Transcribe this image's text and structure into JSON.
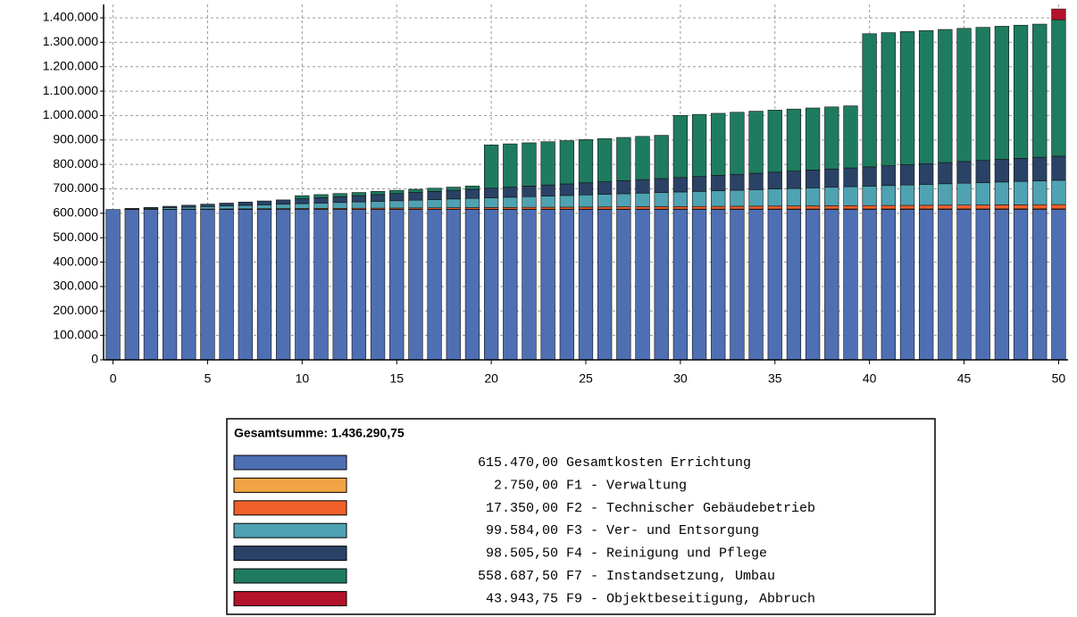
{
  "chart_data": {
    "type": "stacked_bar",
    "x": [
      0,
      1,
      2,
      3,
      4,
      5,
      6,
      7,
      8,
      9,
      10,
      11,
      12,
      13,
      14,
      15,
      16,
      17,
      18,
      19,
      20,
      21,
      22,
      23,
      24,
      25,
      26,
      27,
      28,
      29,
      30,
      31,
      32,
      33,
      34,
      35,
      36,
      37,
      38,
      39,
      40,
      41,
      42,
      43,
      44,
      45,
      46,
      47,
      48,
      49,
      50
    ],
    "xlim": [
      -0.5,
      50.5
    ],
    "xticks": [
      0,
      5,
      10,
      15,
      20,
      25,
      30,
      35,
      40,
      45,
      50
    ],
    "ylim": [
      0,
      1400000
    ],
    "yticks": [
      0,
      {
        "value": 100000,
        "label": "100.000"
      },
      {
        "value": 200000,
        "label": "200.000"
      },
      {
        "value": 300000,
        "label": "300.000"
      },
      {
        "value": 400000,
        "label": "400.000"
      },
      {
        "value": 500000,
        "label": "500.000"
      },
      {
        "value": 600000,
        "label": "600.000"
      },
      {
        "value": 700000,
        "label": "700.000"
      },
      {
        "value": 800000,
        "label": "800.000"
      },
      {
        "value": 900000,
        "label": "900.000"
      },
      {
        "value": 1000000,
        "label": "1.000.000"
      },
      {
        "value": 1100000,
        "label": "1.100.000"
      },
      {
        "value": 1200000,
        "label": "1.200.000"
      },
      {
        "value": 1300000,
        "label": "1.300.000"
      },
      {
        "value": 1400000,
        "label": "1.400.000"
      }
    ],
    "grid": true,
    "legend_title": "Gesamtsumme: 1.436.290,75",
    "series": [
      {
        "name": "Gesamtkosten Errichtung",
        "total_label": "615.470,00",
        "color": "#4f6fb3",
        "values": [
          615470,
          615470,
          615470,
          615470,
          615470,
          615470,
          615470,
          615470,
          615470,
          615470,
          615470,
          615470,
          615470,
          615470,
          615470,
          615470,
          615470,
          615470,
          615470,
          615470,
          615470,
          615470,
          615470,
          615470,
          615470,
          615470,
          615470,
          615470,
          615470,
          615470,
          615470,
          615470,
          615470,
          615470,
          615470,
          615470,
          615470,
          615470,
          615470,
          615470,
          615470,
          615470,
          615470,
          615470,
          615470,
          615470,
          615470,
          615470,
          615470,
          615470,
          615470
        ]
      },
      {
        "name": "F1 - Verwaltung",
        "total_label": "2.750,00",
        "color": "#f2a444",
        "values": [
          0,
          55,
          110,
          165,
          220,
          275,
          330,
          385,
          440,
          495,
          550,
          605,
          660,
          715,
          770,
          825,
          880,
          935,
          990,
          1045,
          1100,
          1155,
          1210,
          1265,
          1320,
          1375,
          1430,
          1485,
          1540,
          1595,
          1650,
          1705,
          1760,
          1815,
          1870,
          1925,
          1980,
          2035,
          2090,
          2145,
          2200,
          2255,
          2310,
          2365,
          2420,
          2475,
          2530,
          2585,
          2640,
          2695,
          2750
        ]
      },
      {
        "name": "F2 - Technischer Gebäudebetrieb",
        "total_label": "17.350,00",
        "color": "#f0602a",
        "values": [
          0,
          347,
          694,
          1041,
          1388,
          1735,
          2082,
          2429,
          2776,
          3123,
          3470,
          3817,
          4164,
          4511,
          4858,
          5205,
          5552,
          5899,
          6246,
          6593,
          6940,
          7287,
          7634,
          7981,
          8328,
          8675,
          9022,
          9369,
          9716,
          10063,
          10410,
          10757,
          11104,
          11451,
          11798,
          12145,
          12492,
          12839,
          13186,
          13533,
          13880,
          14227,
          14574,
          14921,
          15268,
          15615,
          15962,
          16309,
          16656,
          17003,
          17350
        ]
      },
      {
        "name": "F3 - Ver- und Entsorgung",
        "total_label": "99.584,00",
        "color": "#4fa2b2",
        "values": [
          0,
          1992,
          3984,
          5976,
          7968,
          9960,
          11952,
          13944,
          15936,
          17928,
          19920,
          21912,
          23904,
          25896,
          27888,
          29880,
          31872,
          33864,
          35856,
          37848,
          39840,
          41832,
          43824,
          45816,
          47808,
          49800,
          51792,
          53784,
          55776,
          57768,
          59760,
          61752,
          63744,
          65736,
          67728,
          69720,
          71712,
          73704,
          75696,
          77688,
          79680,
          81672,
          83664,
          85656,
          87648,
          89640,
          91632,
          93624,
          95616,
          97608,
          99584
        ]
      },
      {
        "name": "F4 - Reinigung und Pflege",
        "total_label": "98.505,50",
        "color": "#2a4266",
        "values": [
          0,
          1970,
          3940,
          5910,
          7880,
          9850,
          11820,
          13790,
          15760,
          17730,
          19700,
          21670,
          23640,
          25610,
          27580,
          29550,
          31520,
          33490,
          35460,
          37430,
          39400,
          41370,
          43340,
          45310,
          47280,
          49250,
          51220,
          53190,
          55160,
          57130,
          59100,
          61070,
          63040,
          65010,
          66980,
          68950,
          70920,
          72890,
          74860,
          76830,
          78800,
          80770,
          82740,
          84710,
          86680,
          88650,
          90620,
          92590,
          94560,
          96530,
          98505.5
        ]
      },
      {
        "name": "F7 - Instandsetzung, Umbau",
        "total_label": "558.687,50",
        "color": "#1f7b5f",
        "values": [
          0,
          0,
          0,
          0,
          0,
          0,
          0,
          0,
          0,
          0,
          13000,
          13000,
          13000,
          13000,
          13000,
          13000,
          13000,
          13000,
          13000,
          13000,
          177000,
          177000,
          177000,
          177000,
          177000,
          177000,
          177000,
          177000,
          177000,
          177000,
          254000,
          254000,
          254000,
          254000,
          254000,
          254000,
          254000,
          254000,
          254000,
          254000,
          545000,
          545000,
          545000,
          545000,
          545000,
          545000,
          545000,
          545000,
          545000,
          545000,
          558687.5
        ]
      },
      {
        "name": "F9 - Objektbeseitigung, Abbruch",
        "total_label": "43.943,75",
        "color": "#b3132a",
        "values": [
          0,
          0,
          0,
          0,
          0,
          0,
          0,
          0,
          0,
          0,
          0,
          0,
          0,
          0,
          0,
          0,
          0,
          0,
          0,
          0,
          0,
          0,
          0,
          0,
          0,
          0,
          0,
          0,
          0,
          0,
          0,
          0,
          0,
          0,
          0,
          0,
          0,
          0,
          0,
          0,
          0,
          0,
          0,
          0,
          0,
          0,
          0,
          0,
          0,
          0,
          43943.75
        ]
      }
    ]
  }
}
